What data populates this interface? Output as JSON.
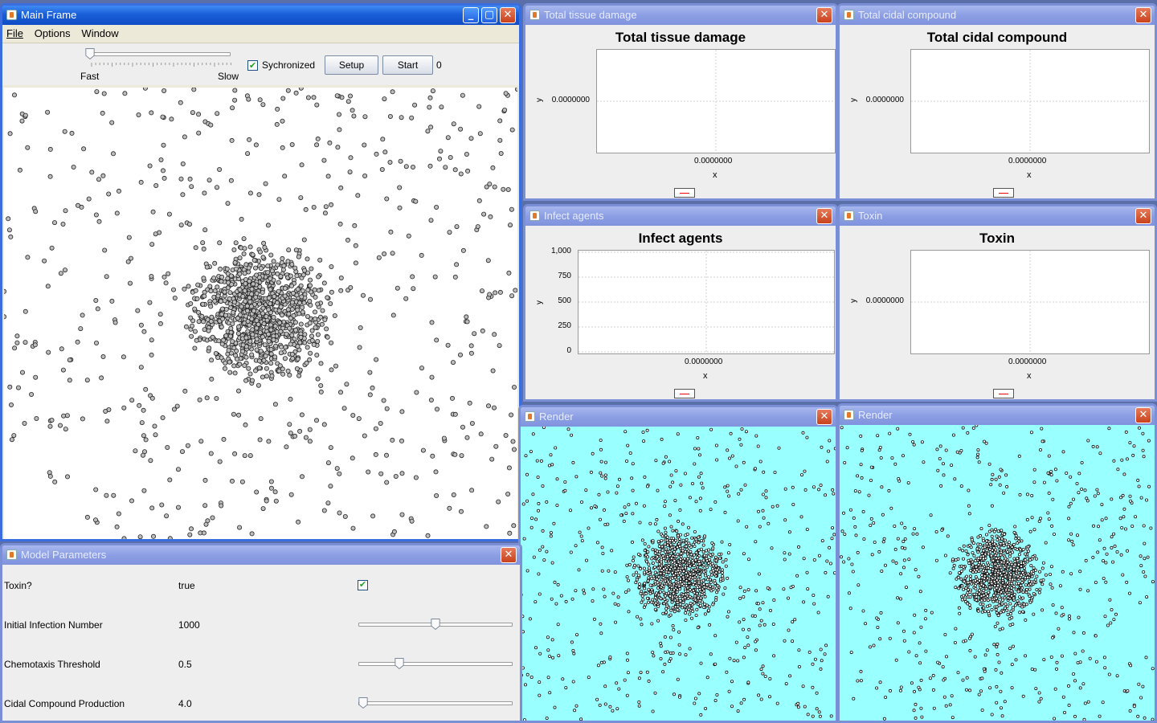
{
  "main_frame": {
    "title": "Main Frame",
    "menu": [
      "File",
      "Options",
      "Window"
    ],
    "speed_fast_label": "Fast",
    "speed_slow_label": "Slow",
    "synchronized_label": "Sychronized",
    "synchronized_checked": true,
    "setup_label": "Setup",
    "start_label": "Start",
    "step_count": "0"
  },
  "charts": [
    {
      "id": "tissue",
      "window_title": "Total tissue damage",
      "chart_data": {
        "type": "line",
        "title": "Total tissue damage",
        "xlabel": "x",
        "ylabel": "y",
        "x_ticks": [
          "0.0000000"
        ],
        "y_ticks": [
          "0.0000000"
        ],
        "series": [
          {
            "values": []
          }
        ],
        "grid": true,
        "legend": "bottom"
      }
    },
    {
      "id": "cidal",
      "window_title": "Total cidal compound",
      "chart_data": {
        "type": "line",
        "title": "Total cidal compound",
        "xlabel": "x",
        "ylabel": "y",
        "x_ticks": [
          "0.0000000"
        ],
        "y_ticks": [
          "0.0000000"
        ],
        "series": [
          {
            "values": []
          }
        ],
        "grid": true,
        "legend": "bottom"
      }
    },
    {
      "id": "infect",
      "window_title": "Infect agents",
      "chart_data": {
        "type": "line",
        "title": "Infect agents",
        "xlabel": "x",
        "ylabel": "y",
        "x_ticks": [
          "0.0000000"
        ],
        "y_ticks": [
          "1,000",
          "750",
          "500",
          "250",
          "0"
        ],
        "ylim": [
          0,
          1000
        ],
        "series": [
          {
            "values": []
          }
        ],
        "grid": true,
        "legend": "bottom"
      }
    },
    {
      "id": "toxin",
      "window_title": "Toxin",
      "chart_data": {
        "type": "line",
        "title": "Toxin",
        "xlabel": "x",
        "ylabel": "y",
        "x_ticks": [
          "0.0000000"
        ],
        "y_ticks": [
          "0.0000000"
        ],
        "series": [
          {
            "values": []
          }
        ],
        "grid": true,
        "legend": "bottom"
      }
    }
  ],
  "render_windows": [
    {
      "title": "Render",
      "background": "#99ffff"
    },
    {
      "title": "Render",
      "background": "#99ffff"
    }
  ],
  "model_parameters": {
    "title": "Model Parameters",
    "rows": [
      {
        "name": "Toxin?",
        "value": "true",
        "control": "checkbox",
        "checked": true
      },
      {
        "name": "Initial Infection Number",
        "value": "1000",
        "control": "slider",
        "level": 0.5
      },
      {
        "name": "Chemotaxis Threshold",
        "value": "0.5",
        "control": "slider",
        "level": 0.25
      },
      {
        "name": "Cidal Compound Production",
        "value": "4.0",
        "control": "slider",
        "level": 0.0
      }
    ]
  }
}
